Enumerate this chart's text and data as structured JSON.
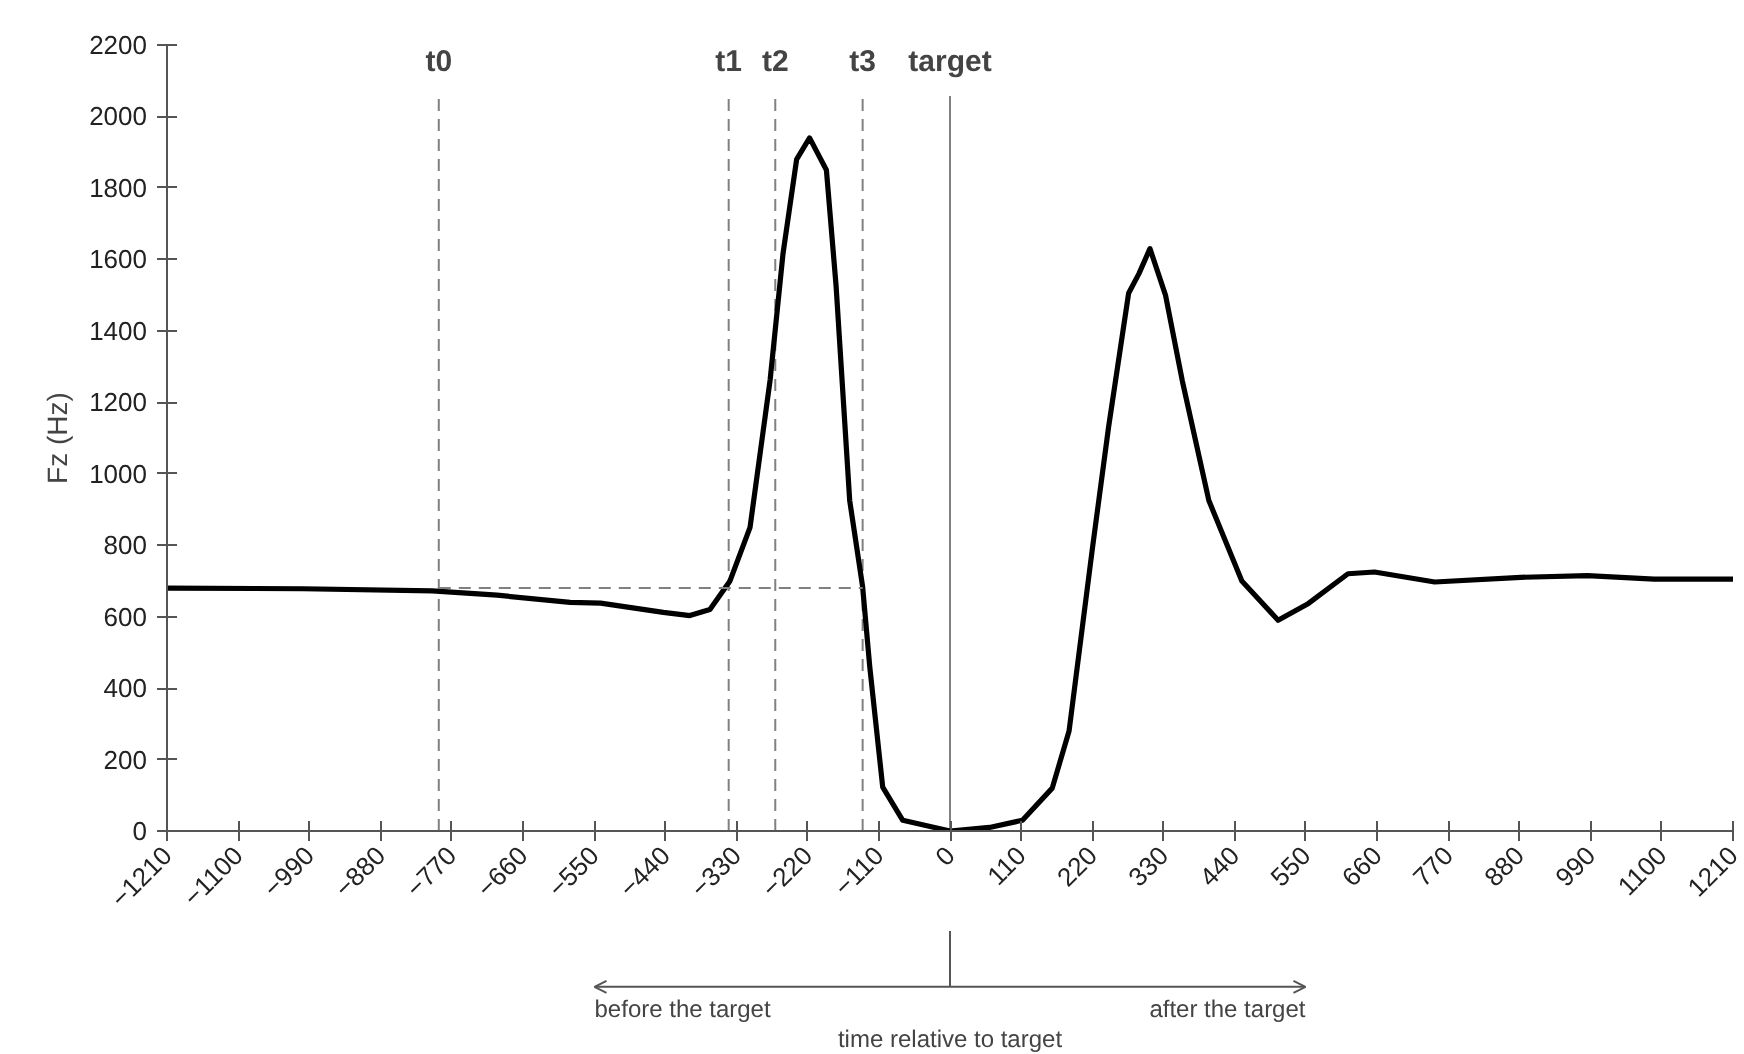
{
  "chart_data": {
    "type": "line",
    "xlabel": "time relative to target",
    "ylabel": "Fz (Hz)",
    "x": [
      -1210,
      -1000,
      -800,
      -700,
      -587,
      -540,
      -443,
      -402,
      -371,
      -340,
      -309,
      -278,
      -258,
      -237,
      -217,
      -191,
      -176,
      -155,
      -135,
      -124,
      -104,
      -73,
      0,
      61,
      112,
      158,
      184,
      220,
      245,
      276,
      292,
      309,
      333,
      359,
      400,
      451,
      507,
      554,
      615,
      656,
      749,
      882,
      985,
      1088,
      1210
    ],
    "series": [
      {
        "color": "#000000",
        "values": [
          680,
          678,
          672,
          660,
          640,
          638,
          612,
          603,
          620,
          700,
          850,
          1262,
          1617,
          1880,
          1940,
          1850,
          1525,
          925,
          683,
          460,
          123,
          30,
          0,
          10,
          30,
          120,
          280,
          790,
          1130,
          1505,
          1560,
          1630,
          1500,
          1260,
          925,
          700,
          590,
          637,
          720,
          725,
          697,
          710,
          715,
          705,
          705
        ]
      },
      {
        "color": "#808080",
        "line_style": "dashed",
        "x": [
          -790,
          -135
        ],
        "values": [
          680,
          680
        ]
      }
    ],
    "xlim": [
      -1210,
      1210
    ],
    "ylim": [
      0,
      2200
    ],
    "xticks": [
      -1210,
      -1100,
      -990,
      -880,
      -770,
      -660,
      -550,
      -440,
      -330,
      -220,
      -110,
      0,
      110,
      220,
      330,
      440,
      550,
      660,
      770,
      880,
      990,
      1100,
      1210
    ],
    "yticks": [
      0,
      200,
      400,
      600,
      800,
      1000,
      1200,
      1400,
      1600,
      1800,
      2000,
      2200
    ],
    "ref_lines": [
      {
        "axis": "x",
        "value": -790,
        "label": "t0",
        "line_style": "dashed",
        "color": "#808080"
      },
      {
        "axis": "x",
        "value": -342,
        "label": "t1",
        "line_style": "dashed",
        "color": "#808080"
      },
      {
        "axis": "x",
        "value": -270,
        "label": "t2",
        "line_style": "dashed",
        "color": "#808080"
      },
      {
        "axis": "x",
        "value": -135,
        "label": "t3",
        "line_style": "dashed",
        "color": "#808080"
      },
      {
        "axis": "x",
        "value": 0,
        "label": "target",
        "line_style": "solid",
        "color": "#808080"
      }
    ],
    "annotations": [
      "before the target",
      "after the target"
    ],
    "line_style": "solid",
    "marker": "none"
  }
}
